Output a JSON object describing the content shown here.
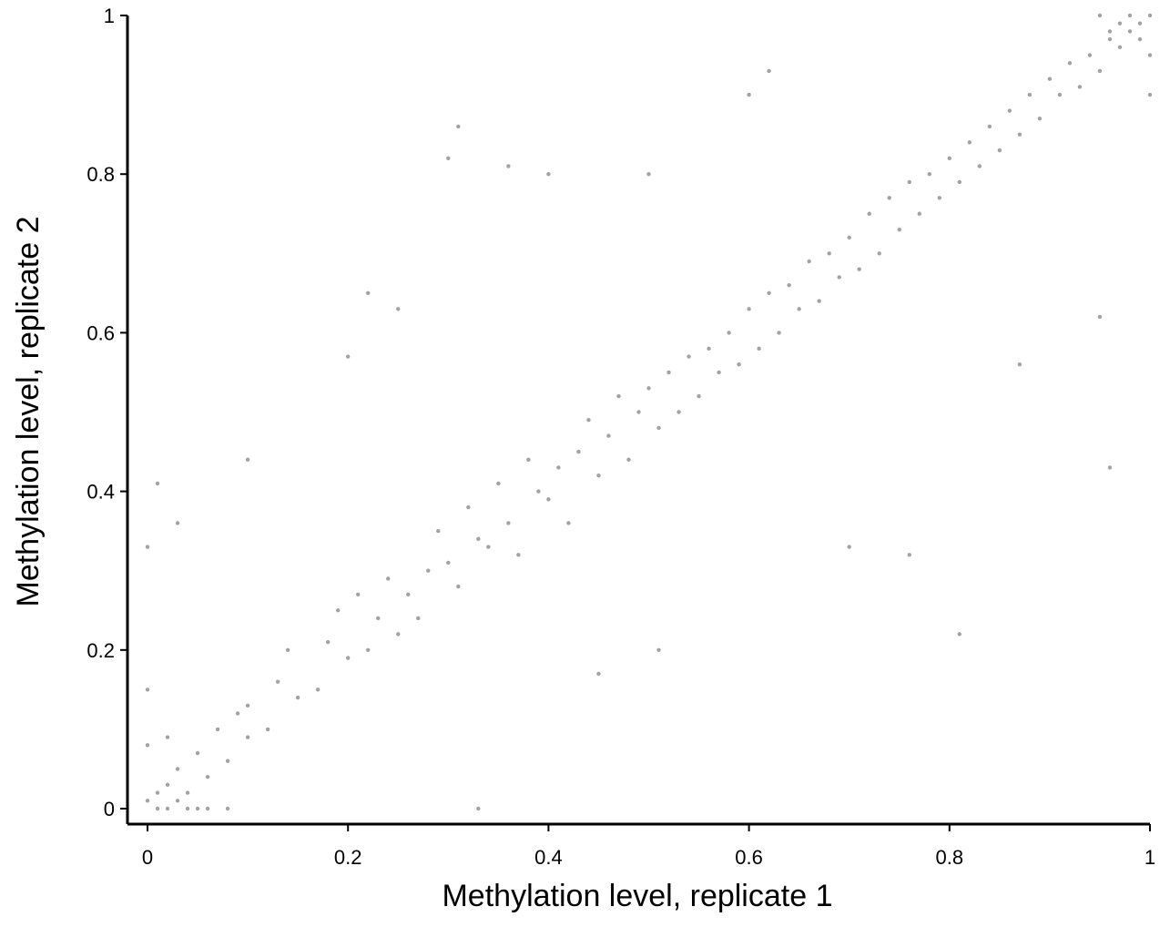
{
  "chart_data": {
    "type": "scatter",
    "x_label": "Methylation level, replicate 1",
    "y_label": "Methylation level, replicate 2",
    "xlim": [
      0,
      1
    ],
    "ylim": [
      0,
      1
    ],
    "xticks": [
      0,
      0.2,
      0.4,
      0.6,
      0.8,
      1
    ],
    "yticks": [
      0,
      0.2,
      0.4,
      0.6,
      0.8,
      1
    ],
    "color": "#555555",
    "x": [
      0,
      0.01,
      0.02,
      0.03,
      0.01,
      0.02,
      0.04,
      0.05,
      0.06,
      0.03,
      0.07,
      0.08,
      0.09,
      0.1,
      0.05,
      0,
      0,
      0,
      0.02,
      0.04,
      0.06,
      0.08,
      0.1,
      0.12,
      0.13,
      0.15,
      0.14,
      0.17,
      0.18,
      0.2,
      0.19,
      0.22,
      0.21,
      0.23,
      0.25,
      0.24,
      0.26,
      0.28,
      0.27,
      0.3,
      0.29,
      0.31,
      0.33,
      0.32,
      0.34,
      0.36,
      0.35,
      0.37,
      0.39,
      0.38,
      0.4,
      0.41,
      0.42,
      0.43,
      0.44,
      0.45,
      0.46,
      0.47,
      0.48,
      0.49,
      0.5,
      0.51,
      0.52,
      0.53,
      0.54,
      0.55,
      0.56,
      0.57,
      0.58,
      0.59,
      0.6,
      0.61,
      0.62,
      0.63,
      0.64,
      0.65,
      0.66,
      0.67,
      0.68,
      0.69,
      0.7,
      0.71,
      0.72,
      0.73,
      0.74,
      0.75,
      0.76,
      0.77,
      0.78,
      0.79,
      0.8,
      0.81,
      0.82,
      0.83,
      0.84,
      0.85,
      0.86,
      0.87,
      0.88,
      0.89,
      0.9,
      0.91,
      0.92,
      0.93,
      0.94,
      0.95,
      0.96,
      0.97,
      0.98,
      0.99,
      1,
      1,
      1,
      0.97,
      0.95,
      0.98,
      0.96,
      0.99,
      0.3,
      0.31,
      0.36,
      0.22,
      0.25,
      0.51,
      0.95,
      0.96,
      0.81,
      0.87,
      0.76,
      0.45,
      0.6,
      0.62,
      0.1,
      0.03,
      0.33,
      0.01,
      0.5,
      0.7,
      0.2,
      0.4
    ],
    "values": [
      0.01,
      0.02,
      0,
      0.05,
      0,
      0.03,
      0.02,
      0.07,
      0.04,
      0.01,
      0.1,
      0.06,
      0.12,
      0.09,
      0,
      0.08,
      0.15,
      0.33,
      0.09,
      0,
      0,
      0,
      0.13,
      0.1,
      0.16,
      0.14,
      0.2,
      0.15,
      0.21,
      0.19,
      0.25,
      0.2,
      0.27,
      0.24,
      0.22,
      0.29,
      0.27,
      0.3,
      0.24,
      0.31,
      0.35,
      0.28,
      0.34,
      0.38,
      0.33,
      0.36,
      0.41,
      0.32,
      0.4,
      0.44,
      0.39,
      0.43,
      0.36,
      0.45,
      0.49,
      0.42,
      0.47,
      0.52,
      0.44,
      0.5,
      0.53,
      0.48,
      0.55,
      0.5,
      0.57,
      0.52,
      0.58,
      0.55,
      0.6,
      0.56,
      0.63,
      0.58,
      0.65,
      0.6,
      0.66,
      0.63,
      0.69,
      0.64,
      0.7,
      0.67,
      0.72,
      0.68,
      0.75,
      0.7,
      0.77,
      0.73,
      0.79,
      0.75,
      0.8,
      0.77,
      0.82,
      0.79,
      0.84,
      0.81,
      0.86,
      0.83,
      0.88,
      0.85,
      0.9,
      0.87,
      0.92,
      0.9,
      0.94,
      0.91,
      0.95,
      0.93,
      0.97,
      0.96,
      0.98,
      0.97,
      1,
      0.9,
      0.95,
      0.99,
      1,
      1,
      0.98,
      0.99,
      0.82,
      0.86,
      0.81,
      0.65,
      0.63,
      0.2,
      0.62,
      0.43,
      0.22,
      0.56,
      0.32,
      0.17,
      0.9,
      0.93,
      0.44,
      0.36,
      0,
      0.41,
      0.8,
      0.33,
      0.57,
      0.8
    ]
  }
}
